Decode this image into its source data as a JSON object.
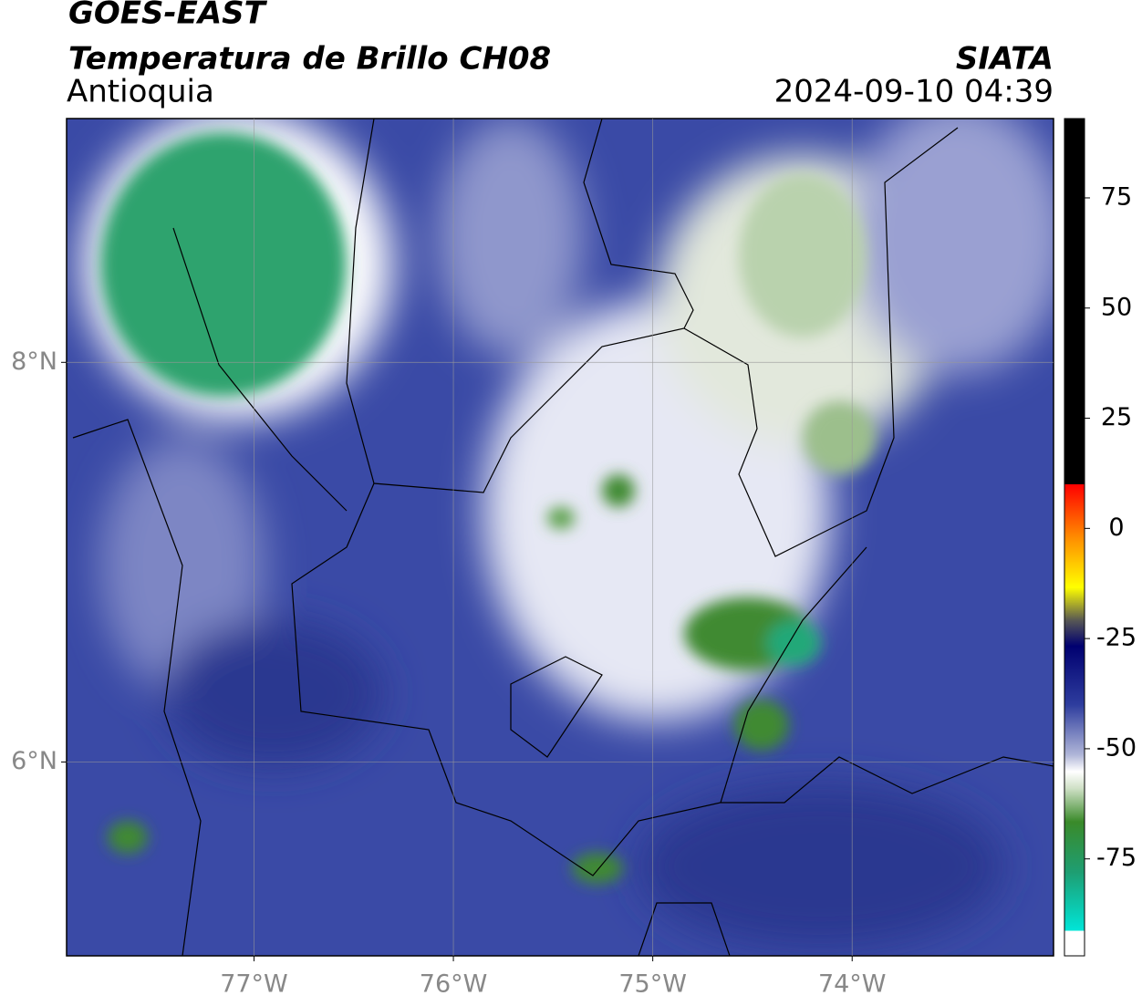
{
  "header": {
    "title": "GOES-EAST",
    "subtitle": "Temperatura de Brillo CH08",
    "region": "Antioquia",
    "source": "SIATA",
    "timestamp": "2024-09-10 04:39"
  },
  "map": {
    "xlim": [
      -77.94,
      -72.99
    ],
    "ylim": [
      5.03,
      9.22
    ],
    "xticks": [
      {
        "value": -77,
        "label": "77°W"
      },
      {
        "value": -76,
        "label": "76°W"
      },
      {
        "value": -75,
        "label": "75°W"
      },
      {
        "value": -74,
        "label": "74°W"
      }
    ],
    "yticks": [
      {
        "value": 8,
        "label": "8°N"
      },
      {
        "value": 6,
        "label": "6°N"
      }
    ],
    "grid": true
  },
  "colorbar": {
    "range": [
      -97,
      93
    ],
    "ticks": [
      75,
      50,
      25,
      0,
      -25,
      -50,
      -75
    ]
  }
}
